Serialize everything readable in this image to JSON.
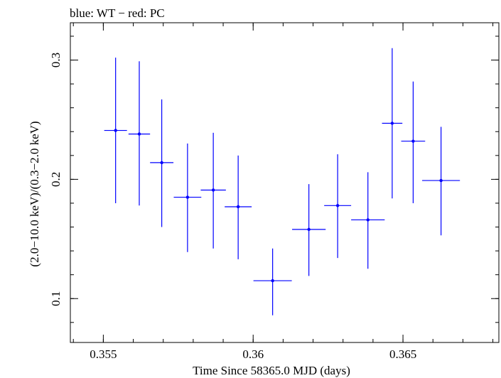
{
  "chart_data": {
    "type": "scatter",
    "title": "blue: WT − red: PC",
    "xlabel": "Time Since 58365.0 MJD (days)",
    "ylabel": "(2.0−10.0 keV)/(0.3−2.0 keV)",
    "xlim": [
      0.3539,
      0.3682
    ],
    "ylim": [
      0.0632,
      0.3313
    ],
    "x_major_ticks": [
      0.355,
      0.36,
      0.365
    ],
    "x_tick_labels": [
      "0.355",
      "0.36",
      "0.365"
    ],
    "x_minor_step": 0.001,
    "y_major_ticks": [
      0.1,
      0.2,
      0.3
    ],
    "y_tick_labels": [
      "0.1",
      "0.2",
      "0.3"
    ],
    "y_minor_step": 0.02,
    "grid": false,
    "colors": {
      "series": "#0000ff",
      "axes": "#000000"
    },
    "series": [
      {
        "points": [
          {
            "x": 0.35541,
            "xerr": 0.00038,
            "y": 0.241,
            "yerr_low": 0.061,
            "yerr_high": 0.061
          },
          {
            "x": 0.3562,
            "xerr": 0.00036,
            "y": 0.238,
            "yerr_low": 0.06,
            "yerr_high": 0.061
          },
          {
            "x": 0.35695,
            "xerr": 0.00039,
            "y": 0.214,
            "yerr_low": 0.054,
            "yerr_high": 0.053
          },
          {
            "x": 0.35781,
            "xerr": 0.00046,
            "y": 0.185,
            "yerr_low": 0.046,
            "yerr_high": 0.045
          },
          {
            "x": 0.35867,
            "xerr": 0.00042,
            "y": 0.191,
            "yerr_low": 0.049,
            "yerr_high": 0.048
          },
          {
            "x": 0.3595,
            "xerr": 0.00045,
            "y": 0.177,
            "yerr_low": 0.044,
            "yerr_high": 0.043
          },
          {
            "x": 0.36065,
            "xerr": 0.00064,
            "y": 0.115,
            "yerr_low": 0.029,
            "yerr_high": 0.027
          },
          {
            "x": 0.36186,
            "xerr": 0.00056,
            "y": 0.158,
            "yerr_low": 0.039,
            "yerr_high": 0.038
          },
          {
            "x": 0.36282,
            "xerr": 0.00045,
            "y": 0.178,
            "yerr_low": 0.044,
            "yerr_high": 0.043
          },
          {
            "x": 0.36383,
            "xerr": 0.00056,
            "y": 0.166,
            "yerr_low": 0.041,
            "yerr_high": 0.04
          },
          {
            "x": 0.36464,
            "xerr": 0.00034,
            "y": 0.247,
            "yerr_low": 0.063,
            "yerr_high": 0.063
          },
          {
            "x": 0.36534,
            "xerr": 0.0004,
            "y": 0.232,
            "yerr_low": 0.052,
            "yerr_high": 0.05
          },
          {
            "x": 0.36627,
            "xerr": 0.00063,
            "y": 0.199,
            "yerr_low": 0.046,
            "yerr_high": 0.045
          }
        ]
      }
    ]
  }
}
